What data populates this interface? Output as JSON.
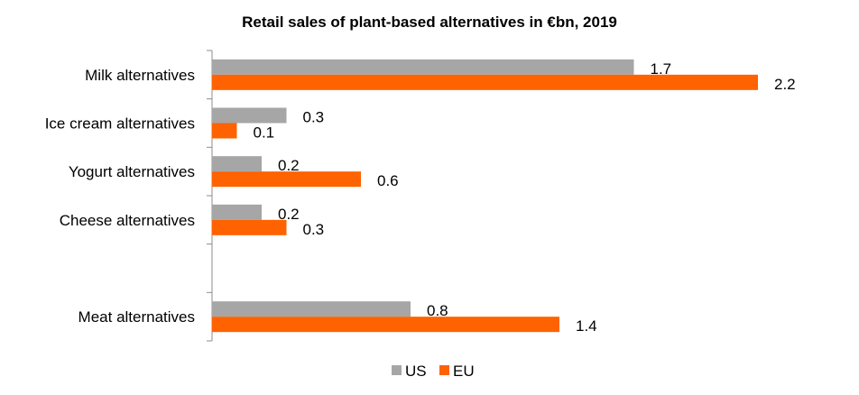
{
  "chart_data": {
    "type": "bar",
    "orientation": "horizontal",
    "title": "Retail sales of plant-based alternatives in €bn, 2019",
    "categories": [
      "Milk alternatives",
      "Ice cream alternatives",
      "Yogurt alternatives",
      "Cheese alternatives",
      "",
      "Meat alternatives"
    ],
    "series": [
      {
        "name": "US",
        "color": "#a6a6a6",
        "values": [
          1.7,
          0.3,
          0.2,
          0.2,
          null,
          0.8
        ]
      },
      {
        "name": "EU",
        "color": "#ff6200",
        "values": [
          2.2,
          0.1,
          0.6,
          0.3,
          null,
          1.4
        ]
      }
    ],
    "xlim": [
      0,
      2.2
    ],
    "grid": false,
    "legend_position": "bottom"
  }
}
